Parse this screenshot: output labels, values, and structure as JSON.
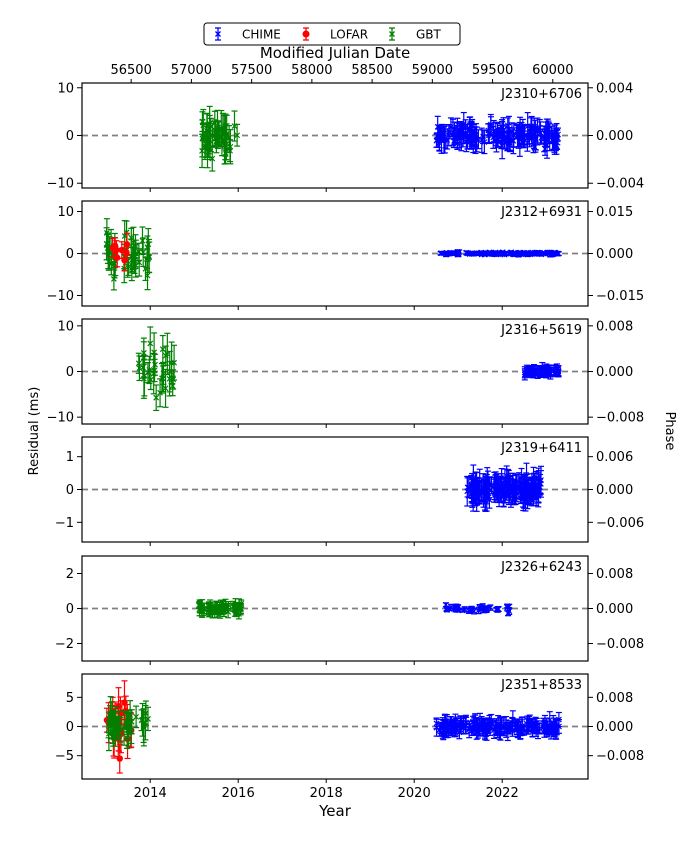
{
  "chart_data": {
    "type": "scatter",
    "top_axis_label": "Modified Julian Date",
    "bottom_axis_label": "Year",
    "left_axis_label": "Residual (ms)",
    "right_axis_label": "Phase",
    "top_ticks": [
      "56500",
      "57000",
      "57500",
      "58000",
      "58500",
      "59000",
      "59500",
      "60000"
    ],
    "bottom_ticks": [
      "2014",
      "2016",
      "2018",
      "2020",
      "2022"
    ],
    "legend": [
      {
        "name": "CHIME",
        "color": "#0000ff",
        "marker": "x"
      },
      {
        "name": "LOFAR",
        "color": "#ff0000",
        "marker": "circle"
      },
      {
        "name": "GBT",
        "color": "#008000",
        "marker": "x"
      }
    ],
    "legend_position": "top-center",
    "panels": [
      {
        "label": "J2310+6706",
        "left_ticks": [
          "10",
          "0",
          "−10"
        ],
        "right_ticks": [
          "0.004",
          "0.000",
          "−0.004"
        ],
        "ylim": [
          -11,
          11
        ],
        "series": [
          {
            "name": "GBT",
            "x_range": [
              2015.1,
              2016.0
            ],
            "y_spread": 2.0,
            "err": 3.0,
            "n": 45
          },
          {
            "name": "CHIME",
            "x_range": [
              2020.5,
              2023.3
            ],
            "y_spread": 0.9,
            "err": 2.2,
            "n": 160
          }
        ]
      },
      {
        "label": "J2312+6931",
        "left_ticks": [
          "10",
          "0",
          "−10"
        ],
        "right_ticks": [
          "0.015",
          "0.000",
          "−0.015"
        ],
        "ylim": [
          -12.5,
          12.5
        ],
        "series": [
          {
            "name": "GBT",
            "x_range": [
              2013.0,
              2014.0
            ],
            "y_spread": 2.5,
            "err": 3.2,
            "n": 45
          },
          {
            "name": "LOFAR",
            "x_range": [
              2013.1,
              2013.5
            ],
            "y_spread": 1.5,
            "err": 2.2,
            "n": 8
          },
          {
            "name": "CHIME",
            "x_range": [
              2020.5,
              2023.3
            ],
            "y_spread": 0.15,
            "err": 0.4,
            "n": 130
          }
        ]
      },
      {
        "label": "J2316+5619",
        "left_ticks": [
          "10",
          "0",
          "−10"
        ],
        "right_ticks": [
          "0.008",
          "0.000",
          "−0.008"
        ],
        "ylim": [
          -11.5,
          11.5
        ],
        "series": [
          {
            "name": "GBT",
            "x_range": [
              2013.7,
              2014.6
            ],
            "y_spread": 3.0,
            "err": 3.5,
            "n": 30
          },
          {
            "name": "CHIME",
            "x_range": [
              2022.5,
              2023.3
            ],
            "y_spread": 0.3,
            "err": 1.0,
            "n": 60
          }
        ]
      },
      {
        "label": "J2319+6411",
        "left_ticks": [
          "1",
          "0",
          "−1"
        ],
        "right_ticks": [
          "0.006",
          "0.000",
          "−0.006"
        ],
        "ylim": [
          -1.6,
          1.6
        ],
        "series": [
          {
            "name": "CHIME",
            "x_range": [
              2021.2,
              2022.9
            ],
            "y_spread": 0.15,
            "err": 0.35,
            "n": 160
          }
        ]
      },
      {
        "label": "J2326+6243",
        "left_ticks": [
          "2",
          "0",
          "−2"
        ],
        "right_ticks": [
          "0.008",
          "0.000",
          "−0.008"
        ],
        "ylim": [
          -3.0,
          3.0
        ],
        "series": [
          {
            "name": "GBT",
            "x_range": [
              2015.1,
              2016.1
            ],
            "y_spread": 0.15,
            "err": 0.3,
            "n": 60
          },
          {
            "name": "CHIME",
            "x_range": [
              2020.7,
              2022.2
            ],
            "y_spread": 0.1,
            "err": 0.15,
            "n": 40
          }
        ]
      },
      {
        "label": "J2351+8533",
        "left_ticks": [
          "5",
          "0",
          "−5"
        ],
        "right_ticks": [
          "0.008",
          "0.000",
          "−0.008"
        ],
        "ylim": [
          -9,
          9
        ],
        "series": [
          {
            "name": "LOFAR",
            "x_range": [
              2013.0,
              2013.6
            ],
            "y_spread": 2.0,
            "err": 3.0,
            "n": 25
          },
          {
            "name": "GBT",
            "x_range": [
              2013.0,
              2014.0
            ],
            "y_spread": 1.5,
            "err": 2.5,
            "n": 35
          },
          {
            "name": "CHIME",
            "x_range": [
              2020.5,
              2023.3
            ],
            "y_spread": 0.5,
            "err": 1.2,
            "n": 170
          }
        ]
      }
    ]
  }
}
